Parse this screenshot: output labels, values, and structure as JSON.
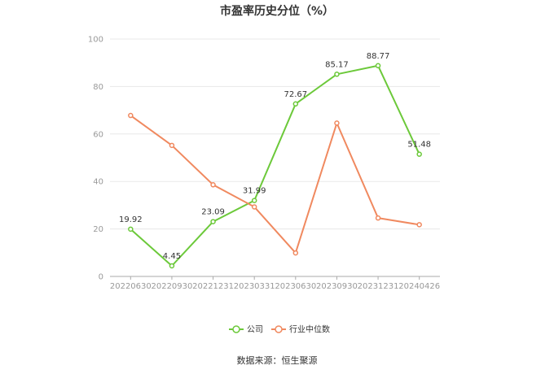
{
  "chart_data": {
    "type": "line",
    "title": "市盈率历史分位（%）",
    "categories": [
      "20220630",
      "20220930",
      "20221231",
      "20230331",
      "20230630",
      "20230930",
      "20231231",
      "20240426"
    ],
    "ylim": [
      0,
      100
    ],
    "yticks": [
      0,
      20,
      40,
      60,
      80,
      100
    ],
    "grid": true,
    "legend_position": "bottom",
    "series": [
      {
        "name": "公司",
        "color": "#6cc93a",
        "show_labels": true,
        "values": [
          19.92,
          4.45,
          23.09,
          31.99,
          72.67,
          85.17,
          88.77,
          51.48
        ],
        "labels": [
          "19.92",
          "4.45",
          "23.09",
          "31.99",
          "72.67",
          "85.17",
          "88.77",
          "51.48"
        ]
      },
      {
        "name": "行业中位数",
        "color": "#f0895f",
        "show_labels": false,
        "values": [
          67.8,
          55.2,
          38.6,
          29.3,
          9.9,
          64.6,
          24.6,
          21.8
        ]
      }
    ]
  },
  "source_text": "数据来源：恒生聚源"
}
